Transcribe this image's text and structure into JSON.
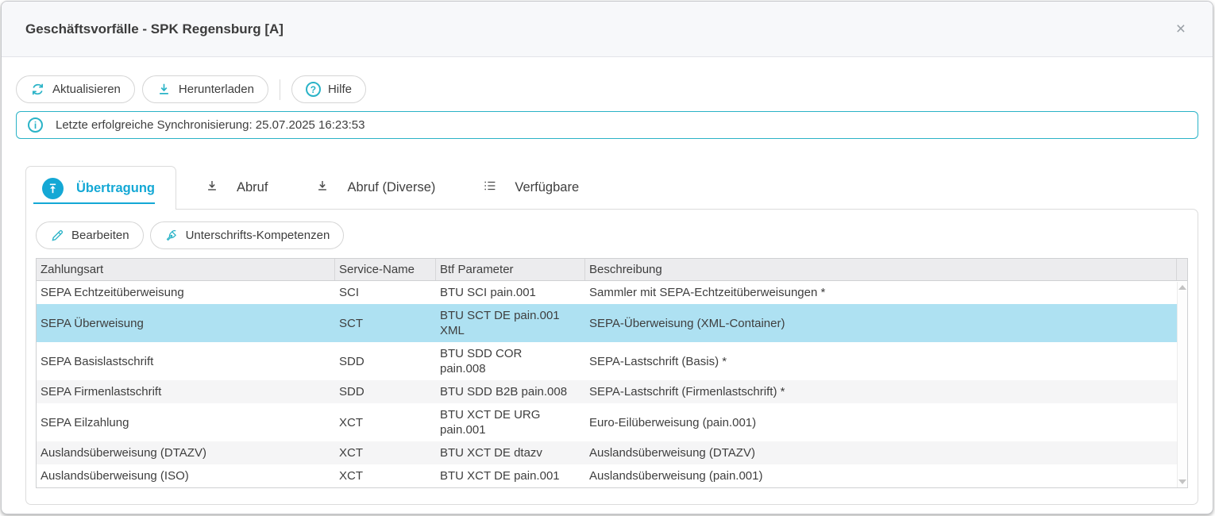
{
  "window": {
    "title": "Geschäftsvorfälle - SPK Regensburg [A]",
    "close_icon": "×"
  },
  "toolbar": {
    "buttons": [
      {
        "label": "Aktualisieren",
        "icon": "refresh-icon"
      },
      {
        "label": "Herunterladen",
        "icon": "download-icon"
      },
      {
        "label": "Hilfe",
        "icon": "help-icon",
        "glyph": "?"
      }
    ]
  },
  "info_bar": {
    "icon": "info-icon",
    "glyph": "i",
    "text": "Letzte erfolgreiche Synchronisierung: 25.07.2025 16:23:53"
  },
  "tabs": [
    {
      "label": "Übertragung",
      "icon": "upload-circle-icon",
      "active": true
    },
    {
      "label": "Abruf",
      "icon": "download-icon",
      "active": false
    },
    {
      "label": "Abruf (Diverse)",
      "icon": "download-icon",
      "active": false
    },
    {
      "label": "Verfügbare",
      "icon": "list-icon",
      "active": false
    }
  ],
  "actions": [
    {
      "label": "Bearbeiten",
      "icon": "edit-icon"
    },
    {
      "label": "Unterschrifts-Kompetenzen",
      "icon": "signature-icon"
    }
  ],
  "table": {
    "columns": [
      "Zahlungsart",
      "Service-Name",
      "Btf Parameter",
      "Beschreibung"
    ],
    "rows": [
      {
        "zahlungsart": "SEPA Echtzeitüberweisung",
        "service": "SCI",
        "btf": "BTU SCI pain.001",
        "beschreibung": "Sammler mit SEPA-Echtzeitüberweisungen *",
        "selected": false
      },
      {
        "zahlungsart": "SEPA Überweisung",
        "service": "SCT",
        "btf": "BTU SCT DE pain.001 XML",
        "beschreibung": "SEPA-Überweisung (XML-Container)",
        "selected": true
      },
      {
        "zahlungsart": "SEPA Basislastschrift",
        "service": "SDD",
        "btf": "BTU SDD COR pain.008",
        "beschreibung": "SEPA-Lastschrift (Basis) *",
        "selected": false
      },
      {
        "zahlungsart": "SEPA Firmenlastschrift",
        "service": "SDD",
        "btf": "BTU SDD B2B pain.008",
        "beschreibung": "SEPA-Lastschrift (Firmenlastschrift) *",
        "selected": false
      },
      {
        "zahlungsart": "SEPA Eilzahlung",
        "service": "XCT",
        "btf": "BTU XCT DE URG pain.001",
        "beschreibung": "Euro-Eilüberweisung (pain.001)",
        "selected": false
      },
      {
        "zahlungsart": "Auslandsüberweisung (DTAZV)",
        "service": "XCT",
        "btf": "BTU XCT DE dtazv",
        "beschreibung": "Auslandsüberweisung (DTAZV)",
        "selected": false
      },
      {
        "zahlungsart": "Auslandsüberweisung (ISO)",
        "service": "XCT",
        "btf": "BTU XCT DE pain.001",
        "beschreibung": "Auslandsüberweisung (pain.001)",
        "selected": false
      }
    ]
  },
  "colors": {
    "accent_teal": "#2ab3c7",
    "accent_tab": "#14a8d5",
    "row_selected": "#aee1f2",
    "row_alt": "#f5f5f6",
    "titlebar_bg": "#f7f8fa"
  }
}
